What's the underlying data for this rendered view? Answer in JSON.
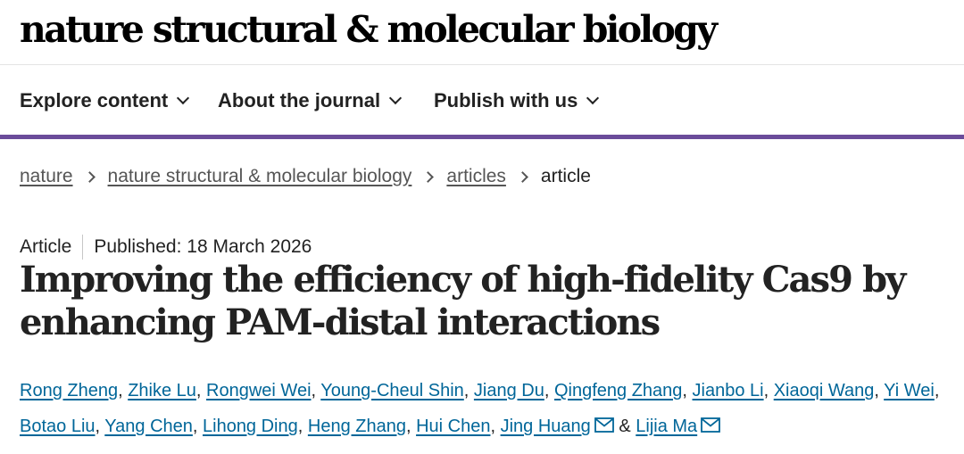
{
  "journal": {
    "name": "nature structural & molecular biology"
  },
  "nav": {
    "items": [
      {
        "label": "Explore content"
      },
      {
        "label": "About the journal"
      },
      {
        "label": "Publish with us"
      }
    ],
    "accent_color": "#6b4c9a"
  },
  "breadcrumb": {
    "items": [
      "nature",
      "nature structural & molecular biology",
      "articles"
    ],
    "current": "article"
  },
  "article": {
    "type": "Article",
    "published": "Published: 18 March 2026",
    "title_line1": "Improving the efficiency of high-fidelity Cas9 by",
    "title_line2": "enhancing PAM-distal interactions",
    "authors": [
      "Rong Zheng",
      "Zhike Lu",
      "Rongwei Wei",
      "Young-Cheul Shin",
      "Jiang Du",
      "Qingfeng Zhang",
      "Jianbo Li",
      "Xiaoqi Wang",
      "Yi Wei",
      "Botao Liu",
      "Yang Chen",
      "Lihong Ding",
      "Heng Zhang",
      "Hui Chen",
      "Jing Huang",
      "Lijia Ma"
    ],
    "ampersand": "&",
    "link_color": "#006699"
  },
  "icons": {
    "mail": "mail-icon",
    "chevron": "chevron-down-icon",
    "separator": "chevron-right-icon"
  }
}
